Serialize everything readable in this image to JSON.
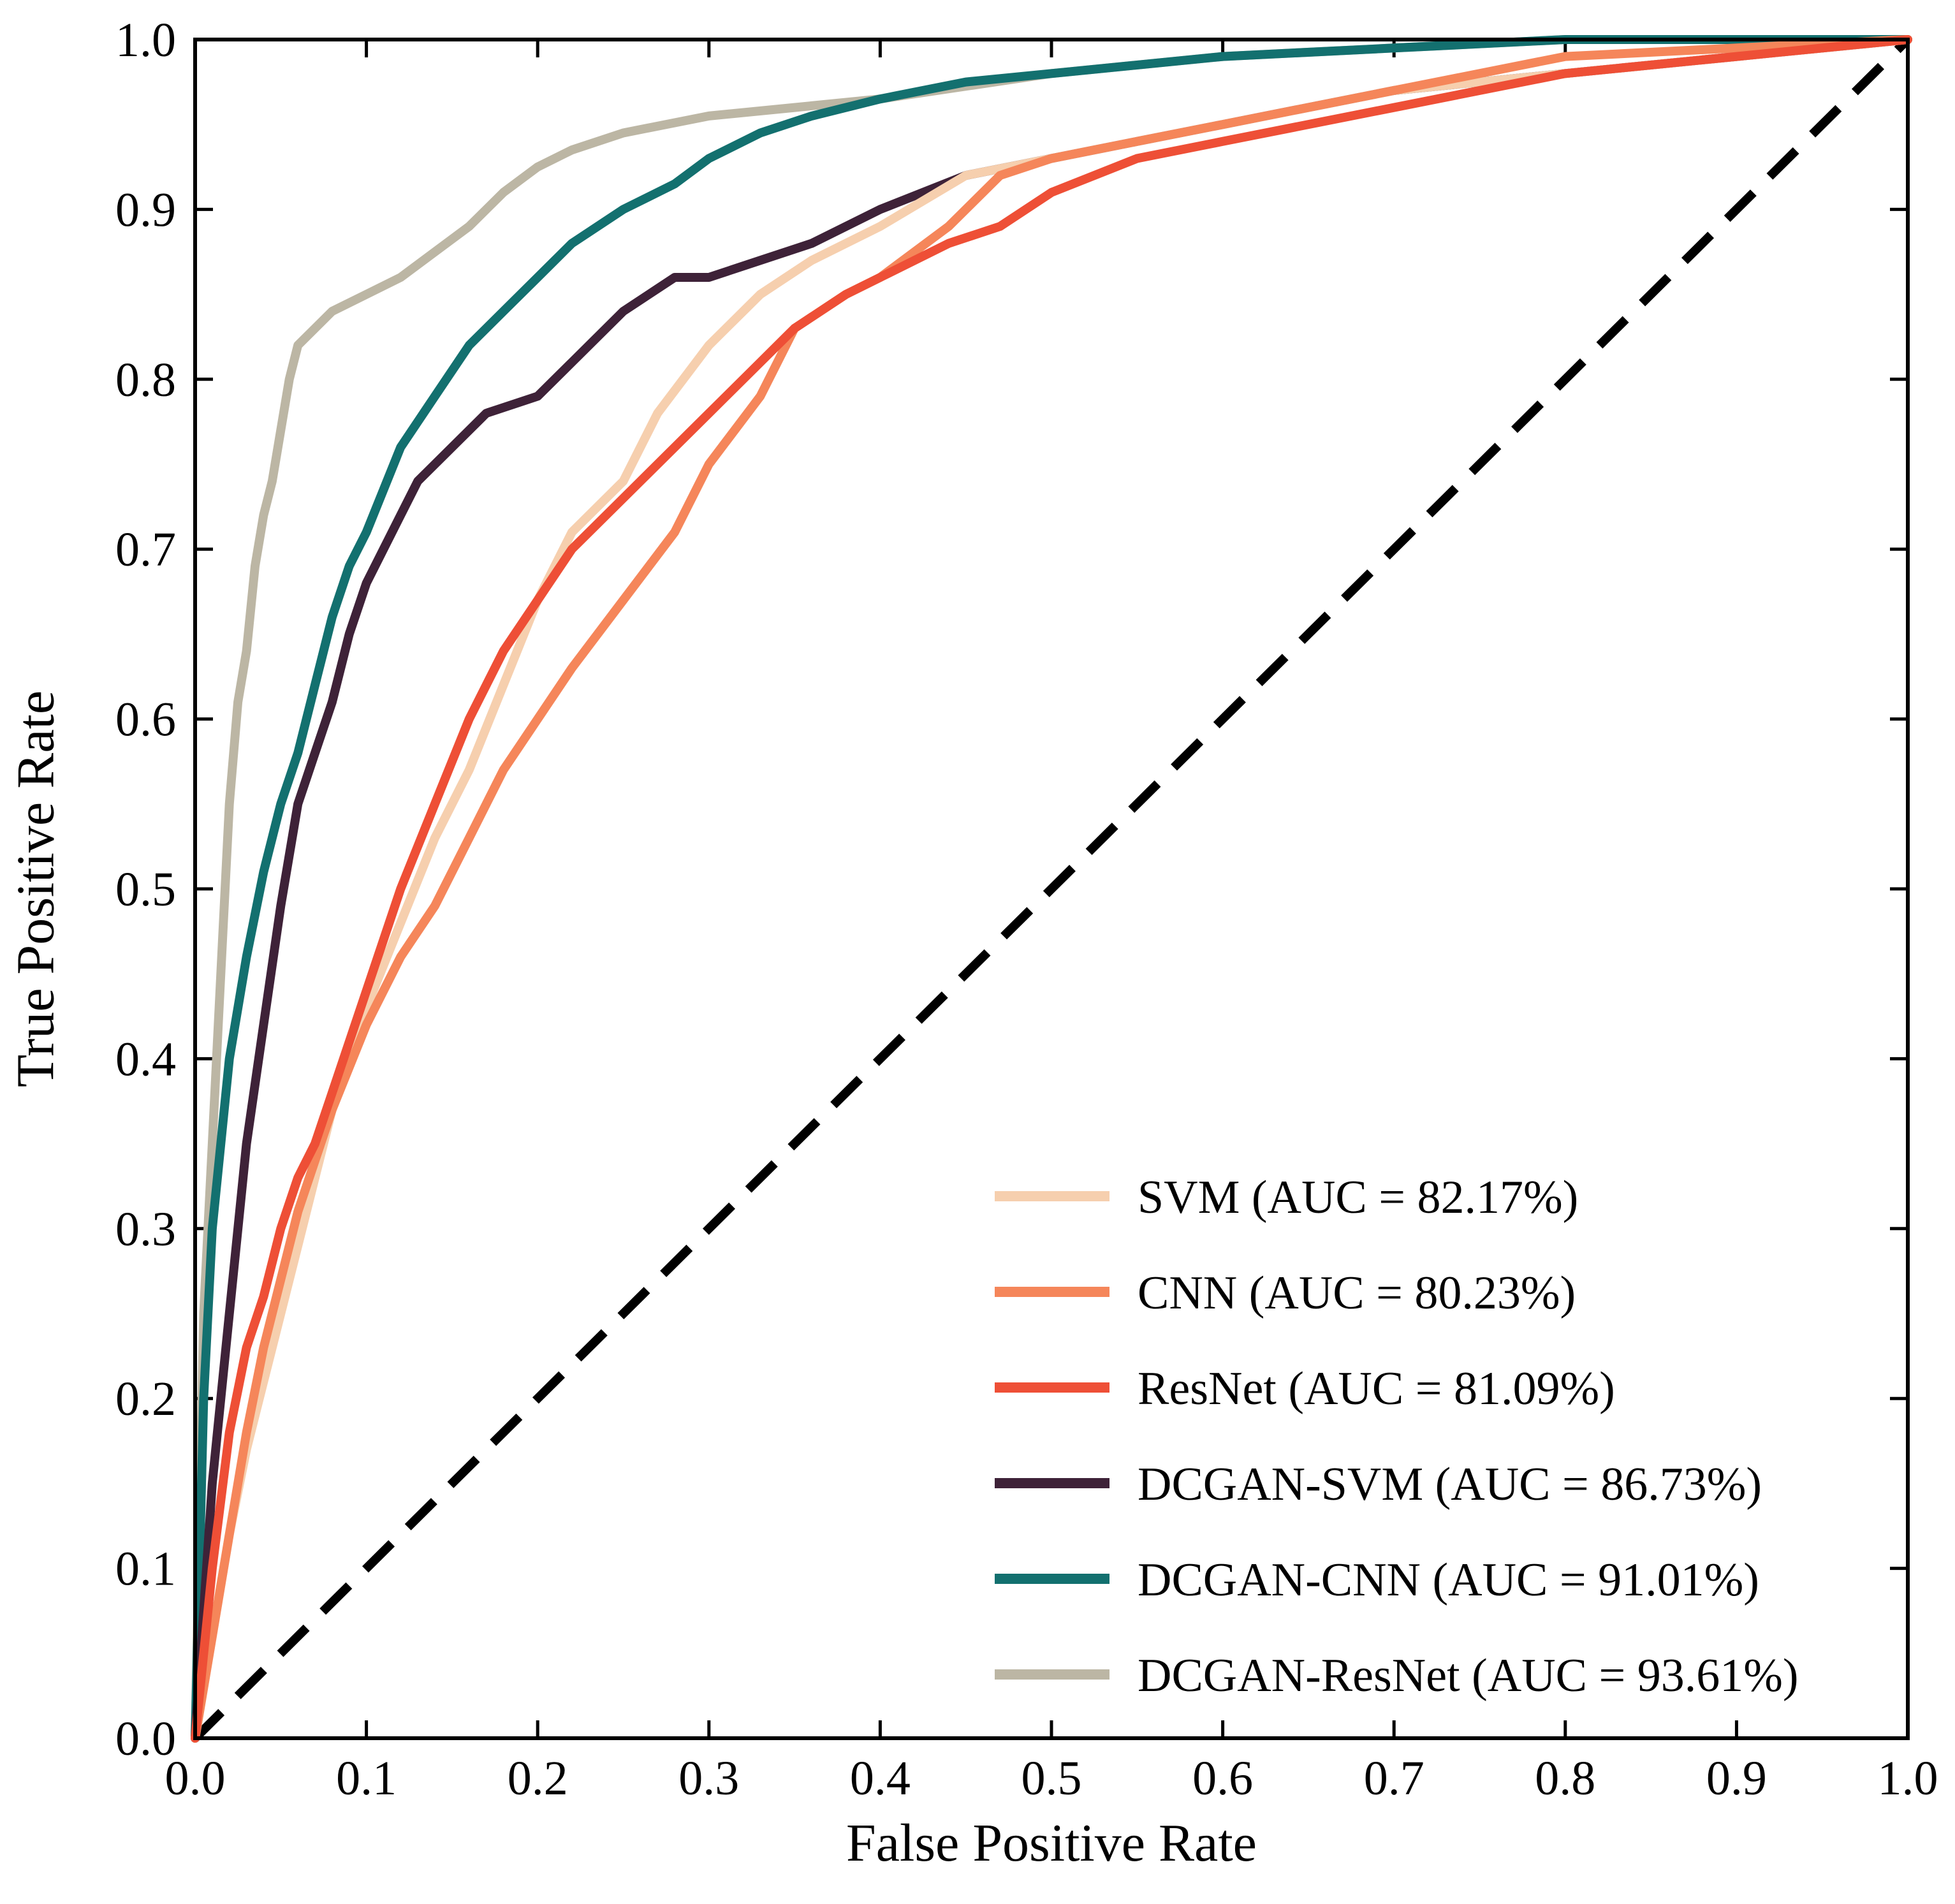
{
  "chart_data": {
    "type": "line",
    "title": "",
    "xlabel": "False Positive Rate",
    "ylabel": "True Positive Rate",
    "xlim": [
      0,
      1
    ],
    "ylim": [
      0,
      1
    ],
    "xticks": [
      "0.0",
      "0.1",
      "0.2",
      "0.3",
      "0.4",
      "0.5",
      "0.6",
      "0.7",
      "0.8",
      "0.9",
      "1.0"
    ],
    "yticks": [
      "0.0",
      "0.1",
      "0.2",
      "0.3",
      "0.4",
      "0.5",
      "0.6",
      "0.7",
      "0.8",
      "0.9",
      "1.0"
    ],
    "grid": false,
    "legend_position": "bottom-right",
    "series": [
      {
        "name": "SVM (AUC = 82.17%)",
        "color": "#F6CFAE",
        "x": [
          0,
          0.01,
          0.02,
          0.03,
          0.04,
          0.05,
          0.06,
          0.07,
          0.08,
          0.09,
          0.1,
          0.12,
          0.14,
          0.16,
          0.18,
          0.2,
          0.22,
          0.25,
          0.27,
          0.3,
          0.33,
          0.36,
          0.4,
          0.45,
          0.5,
          0.55,
          0.6,
          0.65,
          0.7,
          0.8,
          0.9,
          1.0
        ],
        "y": [
          0,
          0.06,
          0.12,
          0.17,
          0.21,
          0.25,
          0.29,
          0.33,
          0.37,
          0.4,
          0.43,
          0.48,
          0.53,
          0.57,
          0.62,
          0.67,
          0.71,
          0.74,
          0.78,
          0.82,
          0.85,
          0.87,
          0.89,
          0.92,
          0.93,
          0.94,
          0.95,
          0.96,
          0.97,
          0.98,
          0.99,
          1.0
        ]
      },
      {
        "name": "CNN (AUC = 80.23%)",
        "color": "#F5865A",
        "x": [
          0,
          0.01,
          0.02,
          0.03,
          0.04,
          0.05,
          0.06,
          0.07,
          0.08,
          0.1,
          0.12,
          0.14,
          0.16,
          0.18,
          0.2,
          0.22,
          0.25,
          0.28,
          0.3,
          0.33,
          0.35,
          0.38,
          0.4,
          0.44,
          0.47,
          0.5,
          0.55,
          0.6,
          0.7,
          0.8,
          0.9,
          1.0
        ],
        "y": [
          0,
          0.06,
          0.12,
          0.18,
          0.23,
          0.27,
          0.31,
          0.34,
          0.37,
          0.42,
          0.46,
          0.49,
          0.53,
          0.57,
          0.6,
          0.63,
          0.67,
          0.71,
          0.75,
          0.79,
          0.83,
          0.85,
          0.86,
          0.89,
          0.92,
          0.93,
          0.94,
          0.95,
          0.97,
          0.99,
          0.995,
          1.0
        ]
      },
      {
        "name": "ResNet (AUC = 81.09%)",
        "color": "#EE4F36",
        "x": [
          0,
          0.01,
          0.02,
          0.03,
          0.04,
          0.05,
          0.06,
          0.07,
          0.08,
          0.1,
          0.12,
          0.14,
          0.16,
          0.18,
          0.2,
          0.22,
          0.25,
          0.28,
          0.3,
          0.33,
          0.35,
          0.38,
          0.4,
          0.44,
          0.47,
          0.5,
          0.55,
          0.6,
          0.7,
          0.8,
          0.9,
          1.0
        ],
        "y": [
          0,
          0.1,
          0.18,
          0.23,
          0.26,
          0.3,
          0.33,
          0.35,
          0.38,
          0.44,
          0.5,
          0.55,
          0.6,
          0.64,
          0.67,
          0.7,
          0.73,
          0.76,
          0.78,
          0.81,
          0.83,
          0.85,
          0.86,
          0.88,
          0.89,
          0.91,
          0.93,
          0.94,
          0.96,
          0.98,
          0.99,
          1.0
        ]
      },
      {
        "name": "DCGAN-SVM (AUC = 86.73%)",
        "color": "#3E2238",
        "x": [
          0,
          0.01,
          0.015,
          0.02,
          0.03,
          0.04,
          0.05,
          0.06,
          0.07,
          0.08,
          0.09,
          0.1,
          0.12,
          0.13,
          0.15,
          0.17,
          0.2,
          0.22,
          0.25,
          0.28,
          0.3,
          0.33,
          0.36,
          0.4,
          0.45,
          0.5,
          0.55,
          0.6,
          0.7,
          0.8,
          0.9,
          1.0
        ],
        "y": [
          0,
          0.15,
          0.2,
          0.25,
          0.35,
          0.42,
          0.49,
          0.55,
          0.58,
          0.61,
          0.65,
          0.68,
          0.72,
          0.74,
          0.76,
          0.78,
          0.79,
          0.81,
          0.84,
          0.86,
          0.86,
          0.87,
          0.88,
          0.9,
          0.92,
          0.93,
          0.94,
          0.95,
          0.97,
          0.98,
          0.99,
          1.0
        ]
      },
      {
        "name": "DCGAN-CNN (AUC = 91.01%)",
        "color": "#13706F",
        "x": [
          0,
          0.005,
          0.01,
          0.02,
          0.03,
          0.04,
          0.05,
          0.06,
          0.07,
          0.08,
          0.09,
          0.1,
          0.12,
          0.14,
          0.16,
          0.18,
          0.2,
          0.22,
          0.25,
          0.28,
          0.3,
          0.33,
          0.36,
          0.4,
          0.45,
          0.5,
          0.6,
          0.7,
          0.8,
          0.9,
          1.0
        ],
        "y": [
          0,
          0.2,
          0.3,
          0.4,
          0.46,
          0.51,
          0.55,
          0.58,
          0.62,
          0.66,
          0.69,
          0.71,
          0.76,
          0.79,
          0.82,
          0.84,
          0.86,
          0.88,
          0.9,
          0.915,
          0.93,
          0.945,
          0.955,
          0.965,
          0.975,
          0.98,
          0.99,
          0.995,
          1.0,
          1.0,
          1.0
        ]
      },
      {
        "name": "DCGAN-ResNet (AUC = 93.61%)",
        "color": "#BCB6A4",
        "x": [
          0,
          0.005,
          0.01,
          0.015,
          0.02,
          0.025,
          0.03,
          0.035,
          0.04,
          0.045,
          0.05,
          0.055,
          0.06,
          0.08,
          0.1,
          0.12,
          0.14,
          0.16,
          0.18,
          0.2,
          0.22,
          0.25,
          0.3,
          0.35,
          0.4,
          0.5,
          0.6,
          0.7,
          0.8,
          0.9,
          1.0
        ],
        "y": [
          0,
          0.25,
          0.35,
          0.45,
          0.55,
          0.61,
          0.64,
          0.69,
          0.72,
          0.74,
          0.77,
          0.8,
          0.82,
          0.84,
          0.85,
          0.86,
          0.875,
          0.89,
          0.91,
          0.925,
          0.935,
          0.945,
          0.955,
          0.96,
          0.965,
          0.98,
          0.99,
          0.995,
          1.0,
          1.0,
          1.0
        ]
      }
    ],
    "reference_line": {
      "x": [
        0,
        1
      ],
      "y": [
        0,
        1
      ],
      "color": "#000000",
      "style": "dashed"
    }
  }
}
